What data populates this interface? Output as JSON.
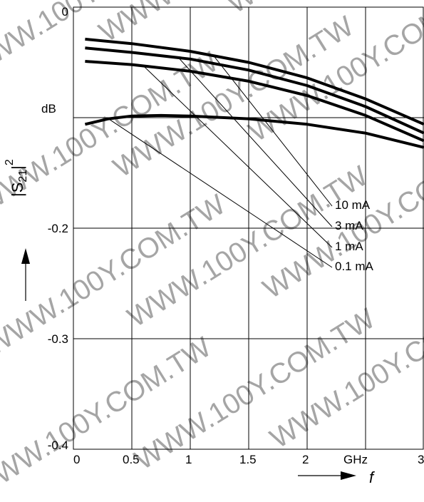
{
  "chart_data": {
    "type": "line",
    "title": "",
    "xlabel": "f",
    "x_unit": "GHz",
    "ylabel": "|S21|²",
    "y_unit": "dB",
    "xlim": [
      0,
      3
    ],
    "ylim": [
      -0.4,
      0
    ],
    "x_ticks": [
      "0",
      "0.5",
      "1",
      "1.5",
      "2",
      "3"
    ],
    "y_ticks": [
      "0",
      "-0.2",
      "-0.3",
      "-0.4"
    ],
    "grid": true,
    "series": [
      {
        "name": "10 mA",
        "x": [
          0.1,
          0.5,
          1.0,
          1.5,
          2.0,
          2.5,
          3.0
        ],
        "y": [
          -0.029,
          -0.033,
          -0.04,
          -0.05,
          -0.064,
          -0.083,
          -0.106
        ]
      },
      {
        "name": "3 mA",
        "x": [
          0.1,
          0.5,
          1.0,
          1.5,
          2.0,
          2.5,
          3.0
        ],
        "y": [
          -0.037,
          -0.041,
          -0.047,
          -0.057,
          -0.071,
          -0.09,
          -0.114
        ]
      },
      {
        "name": "1 mA",
        "x": [
          0.1,
          0.5,
          1.0,
          1.5,
          2.0,
          2.5,
          3.0
        ],
        "y": [
          -0.049,
          -0.052,
          -0.058,
          -0.067,
          -0.08,
          -0.098,
          -0.121
        ]
      },
      {
        "name": "0.1 mA",
        "x": [
          0.1,
          0.3,
          0.5,
          0.75,
          1.0,
          1.5,
          2.0,
          2.5,
          3.0
        ],
        "y": [
          -0.106,
          -0.101,
          -0.0985,
          -0.098,
          -0.0985,
          -0.101,
          -0.106,
          -0.114,
          -0.127
        ]
      }
    ],
    "annotations": [
      "10 mA",
      "3 mA",
      "1 mA",
      "0.1 mA"
    ],
    "watermark": "WWW.100Y.COM.TW"
  }
}
